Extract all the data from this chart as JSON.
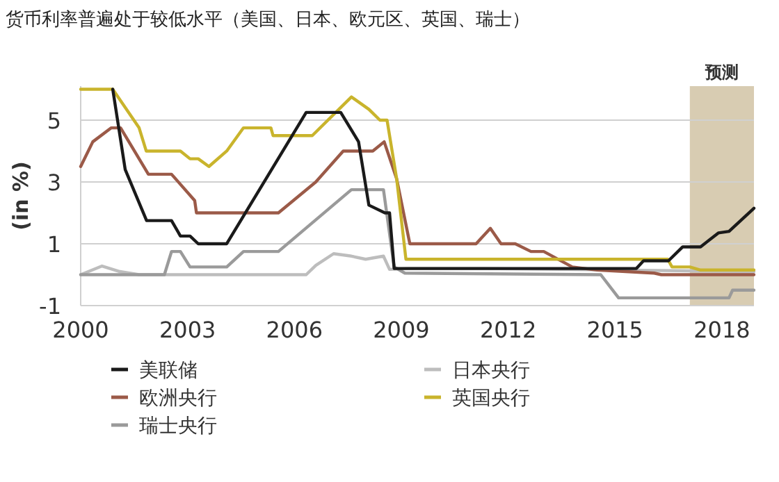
{
  "chart_data": {
    "type": "line",
    "title": "货币利率普遍处于较低水平（美国、日本、欧元区、英国、瑞士）",
    "ylabel": "(in %)",
    "xlim": [
      2000,
      2018.9
    ],
    "xticks": [
      2000,
      2003,
      2006,
      2009,
      2012,
      2015,
      2018
    ],
    "ylim": [
      -1,
      6.1
    ],
    "yticks": [
      -1,
      1,
      3,
      5
    ],
    "grid": "y",
    "legend": "bottom",
    "bands": [
      {
        "axis": "x",
        "from": 2017.1,
        "to": 2018.9,
        "label": "预测",
        "color": "#d8ccb2"
      }
    ],
    "series": [
      {
        "name": "美联储",
        "color": "#1a1a1a",
        "x": [
          2000.9,
          2001.25,
          2001.85,
          2002.55,
          2002.8,
          2003.07,
          2003.3,
          2004.1,
          2006.33,
          2007.3,
          2007.8,
          2008.09,
          2008.54,
          2008.67,
          2008.8,
          2015.6,
          2015.8,
          2016.5,
          2016.9,
          2017.4,
          2017.9,
          2018.2,
          2018.9
        ],
        "values": [
          6,
          3.4,
          1.75,
          1.75,
          1.25,
          1.25,
          1,
          1,
          5.25,
          5.25,
          4.3,
          2.25,
          2,
          2,
          0.2,
          0.2,
          0.45,
          0.45,
          0.9,
          0.9,
          1.35,
          1.4,
          2.15
        ]
      },
      {
        "name": "日本央行",
        "color": "#bdbdbd",
        "x": [
          2000,
          2000.6,
          2001.1,
          2001.64,
          2006.33,
          2006.6,
          2007.1,
          2007.6,
          2008.0,
          2008.5,
          2008.67,
          2009.2,
          2011.3,
          2018.9
        ],
        "values": [
          0,
          0.28,
          0.1,
          0,
          0,
          0.3,
          0.68,
          0.6,
          0.5,
          0.6,
          0.17,
          0.2,
          0.2,
          0.1
        ]
      },
      {
        "name": "欧洲央行",
        "color": "#9b5a48",
        "x": [
          2000,
          2000.34,
          2000.86,
          2001.12,
          2001.64,
          2001.9,
          2002.55,
          2003.2,
          2003.25,
          2005.55,
          2006.6,
          2007.37,
          2008.2,
          2008.52,
          2008.87,
          2009.24,
          2011.1,
          2011.5,
          2011.8,
          2012.2,
          2012.64,
          2013.0,
          2013.8,
          2014.5,
          2016.1,
          2016.3,
          2018.9
        ],
        "values": [
          3.5,
          4.3,
          4.75,
          4.75,
          3.75,
          3.25,
          3.25,
          2.4,
          2,
          2,
          3,
          4,
          4,
          4.3,
          3.1,
          1,
          1,
          1.5,
          1,
          1,
          0.75,
          0.75,
          0.25,
          0.15,
          0.05,
          0,
          0
        ]
      },
      {
        "name": "英国央行",
        "color": "#c9b42c",
        "x": [
          2000,
          2000.9,
          2001.64,
          2001.84,
          2002.8,
          2003.07,
          2003.3,
          2003.6,
          2004.1,
          2004.57,
          2005.34,
          2005.4,
          2006.5,
          2007.6,
          2008.09,
          2008.4,
          2008.6,
          2008.87,
          2009.13,
          2016.48,
          2016.6,
          2017.1,
          2017.4,
          2018.9
        ],
        "values": [
          6,
          6,
          4.75,
          4,
          4,
          3.75,
          3.75,
          3.5,
          4,
          4.75,
          4.75,
          4.5,
          4.5,
          5.75,
          5.35,
          5,
          5,
          3.1,
          0.5,
          0.5,
          0.25,
          0.25,
          0.15,
          0.15
        ]
      },
      {
        "name": "瑞士央行",
        "color": "#9a9a9a",
        "x": [
          2000,
          2002.35,
          2002.55,
          2002.8,
          2003.07,
          2004.1,
          2004.57,
          2005.55,
          2007.6,
          2008.5,
          2008.8,
          2009.1,
          2014.6,
          2015.1,
          2018.2,
          2018.3,
          2018.9
        ],
        "values": [
          0,
          0,
          0.75,
          0.75,
          0.25,
          0.25,
          0.75,
          0.75,
          2.75,
          2.75,
          0.25,
          0.05,
          0,
          -0.75,
          -0.75,
          -0.5,
          -0.5
        ]
      }
    ]
  }
}
